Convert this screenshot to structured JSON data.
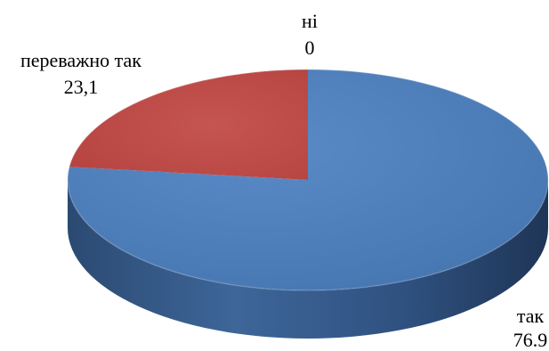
{
  "chart_data": {
    "type": "pie",
    "title": "",
    "slices": [
      {
        "label": "так",
        "value_label": "76.9",
        "value": 76.9,
        "color": "#4F81BD"
      },
      {
        "label": "переважно так",
        "value_label": "23,1",
        "value": 23.1,
        "color": "#C0504D"
      },
      {
        "label": "ні",
        "value_label": "0",
        "value": 0,
        "color": "#9BBB59"
      }
    ],
    "style": "3d",
    "legend": "none"
  }
}
